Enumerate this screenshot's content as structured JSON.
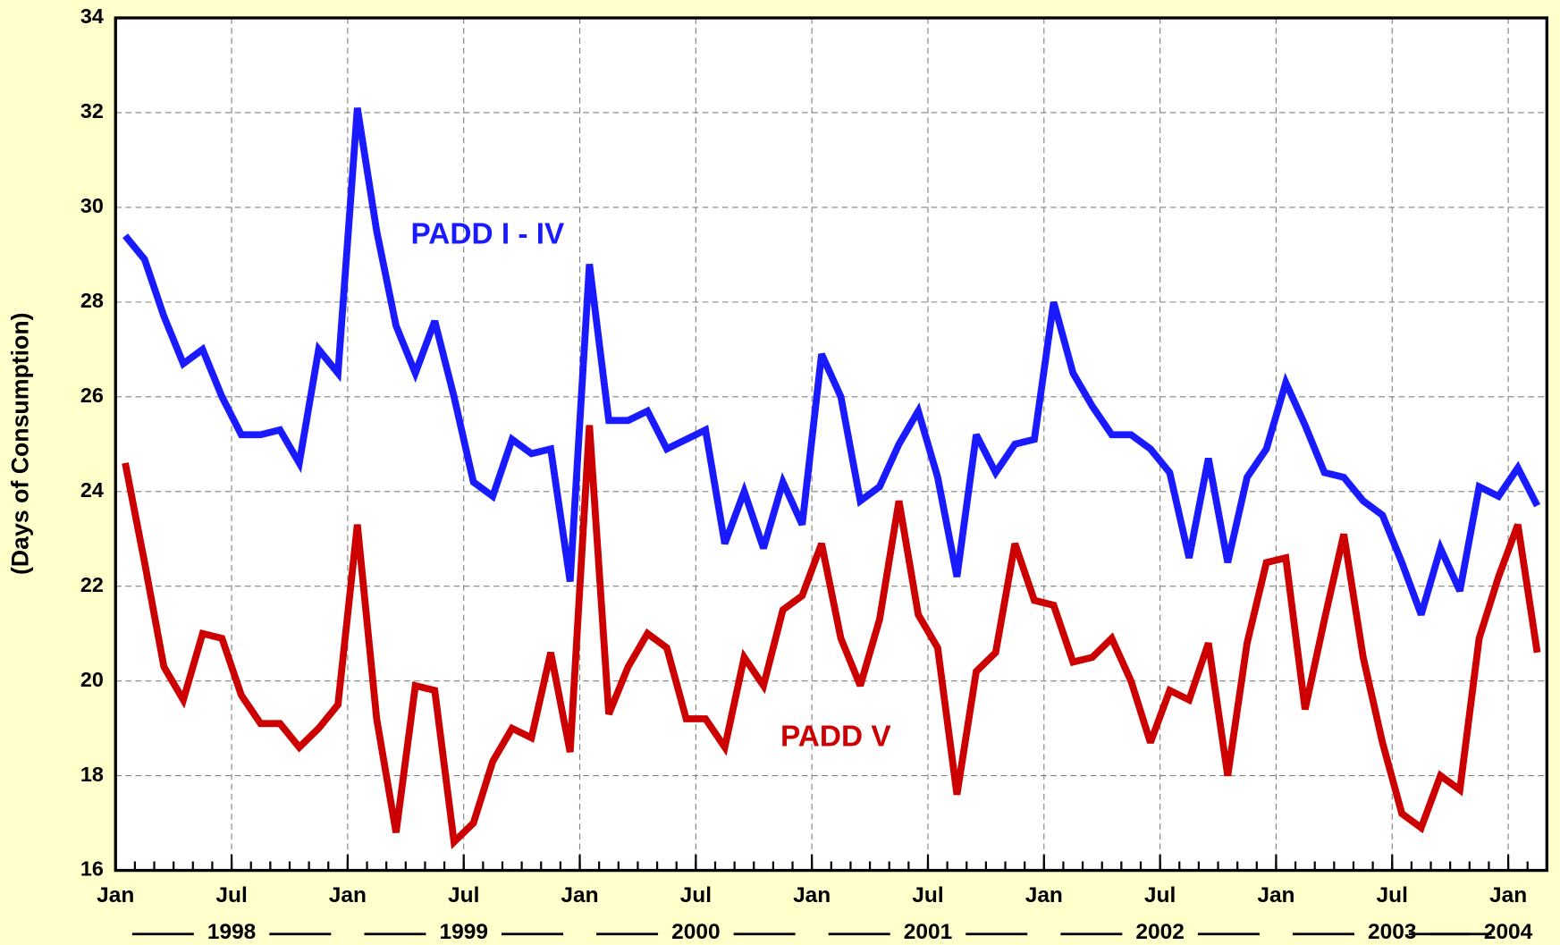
{
  "chart_data": {
    "type": "line",
    "ylabel": "(Days of Consumption)",
    "x": [
      "1998-01",
      "1998-02",
      "1998-03",
      "1998-04",
      "1998-05",
      "1998-06",
      "1998-07",
      "1998-08",
      "1998-09",
      "1998-10",
      "1998-11",
      "1998-12",
      "1999-01",
      "1999-02",
      "1999-03",
      "1999-04",
      "1999-05",
      "1999-06",
      "1999-07",
      "1999-08",
      "1999-09",
      "1999-10",
      "1999-11",
      "1999-12",
      "2000-01",
      "2000-02",
      "2000-03",
      "2000-04",
      "2000-05",
      "2000-06",
      "2000-07",
      "2000-08",
      "2000-09",
      "2000-10",
      "2000-11",
      "2000-12",
      "2001-01",
      "2001-02",
      "2001-03",
      "2001-04",
      "2001-05",
      "2001-06",
      "2001-07",
      "2001-08",
      "2001-09",
      "2001-10",
      "2001-11",
      "2001-12",
      "2002-01",
      "2002-02",
      "2002-03",
      "2002-04",
      "2002-05",
      "2002-06",
      "2002-07",
      "2002-08",
      "2002-09",
      "2002-10",
      "2002-11",
      "2002-12",
      "2003-01",
      "2003-02",
      "2003-03",
      "2003-04",
      "2003-05",
      "2003-06",
      "2003-07",
      "2003-08",
      "2003-09",
      "2003-10",
      "2003-11",
      "2003-12",
      "2004-01",
      "2004-02"
    ],
    "series": [
      {
        "name": "PADD I - IV",
        "color": "#1a1aff",
        "values": [
          29.4,
          28.9,
          27.7,
          26.7,
          27.0,
          26.0,
          25.2,
          25.2,
          25.3,
          24.6,
          27.0,
          26.5,
          32.1,
          29.5,
          27.5,
          26.5,
          27.6,
          26.0,
          24.2,
          23.9,
          25.1,
          24.8,
          24.9,
          22.1,
          28.8,
          25.5,
          25.5,
          25.7,
          24.9,
          25.1,
          25.3,
          22.9,
          24.0,
          22.8,
          24.2,
          23.3,
          26.9,
          26.0,
          23.8,
          24.1,
          25.0,
          25.7,
          24.3,
          22.2,
          25.2,
          24.4,
          25.0,
          25.1,
          28.0,
          26.5,
          25.8,
          25.2,
          25.2,
          24.9,
          24.4,
          22.6,
          24.7,
          22.5,
          24.3,
          24.9,
          26.3,
          25.4,
          24.4,
          24.3,
          23.8,
          23.5,
          22.5,
          21.4,
          22.8,
          21.9,
          24.1,
          23.9,
          24.5,
          23.7
        ]
      },
      {
        "name": "PADD V",
        "color": "#cc0000",
        "values": [
          24.6,
          22.5,
          20.3,
          19.6,
          21.0,
          20.9,
          19.7,
          19.1,
          19.1,
          18.6,
          19.0,
          19.5,
          23.3,
          19.2,
          16.8,
          19.9,
          19.8,
          16.6,
          17.0,
          18.3,
          19.0,
          18.8,
          20.6,
          18.5,
          25.4,
          19.3,
          20.3,
          21.0,
          20.7,
          19.2,
          19.2,
          18.6,
          20.5,
          19.9,
          21.5,
          21.8,
          22.9,
          20.9,
          19.9,
          21.3,
          23.8,
          21.4,
          20.7,
          17.6,
          20.2,
          20.6,
          22.9,
          21.7,
          21.6,
          20.4,
          20.5,
          20.9,
          20.0,
          18.7,
          19.8,
          19.6,
          20.8,
          18.0,
          20.8,
          22.5,
          22.6,
          19.4,
          21.3,
          23.1,
          20.5,
          18.7,
          17.2,
          16.9,
          18.0,
          17.7,
          20.9,
          22.2,
          23.3,
          20.6
        ]
      }
    ],
    "xlim": [
      "1998-01",
      "2004-03"
    ],
    "xticks": [
      {
        "value": "1998-01",
        "label": "Jan"
      },
      {
        "value": "1998-07",
        "label": "Jul"
      },
      {
        "value": "1999-01",
        "label": "Jan"
      },
      {
        "value": "1999-07",
        "label": "Jul"
      },
      {
        "value": "2000-01",
        "label": "Jan"
      },
      {
        "value": "2000-07",
        "label": "Jul"
      },
      {
        "value": "2001-01",
        "label": "Jan"
      },
      {
        "value": "2001-07",
        "label": "Jul"
      },
      {
        "value": "2002-01",
        "label": "Jan"
      },
      {
        "value": "2002-07",
        "label": "Jul"
      },
      {
        "value": "2003-01",
        "label": "Jan"
      },
      {
        "value": "2003-07",
        "label": "Jul"
      },
      {
        "value": "2004-01",
        "label": "Jan"
      }
    ],
    "year_labels": [
      {
        "value": "1998-07",
        "label": "1998"
      },
      {
        "value": "1999-07",
        "label": "1999"
      },
      {
        "value": "2000-07",
        "label": "2000"
      },
      {
        "value": "2001-07",
        "label": "2001"
      },
      {
        "value": "2002-07",
        "label": "2002"
      },
      {
        "value": "2003-07",
        "label": "2003"
      },
      {
        "value": "2004-01",
        "label": "2004"
      }
    ],
    "ylim": [
      16,
      34
    ],
    "yticks": [
      16,
      18,
      20,
      22,
      24,
      26,
      28,
      30,
      32,
      34
    ],
    "grid": true,
    "legend": "inline"
  }
}
